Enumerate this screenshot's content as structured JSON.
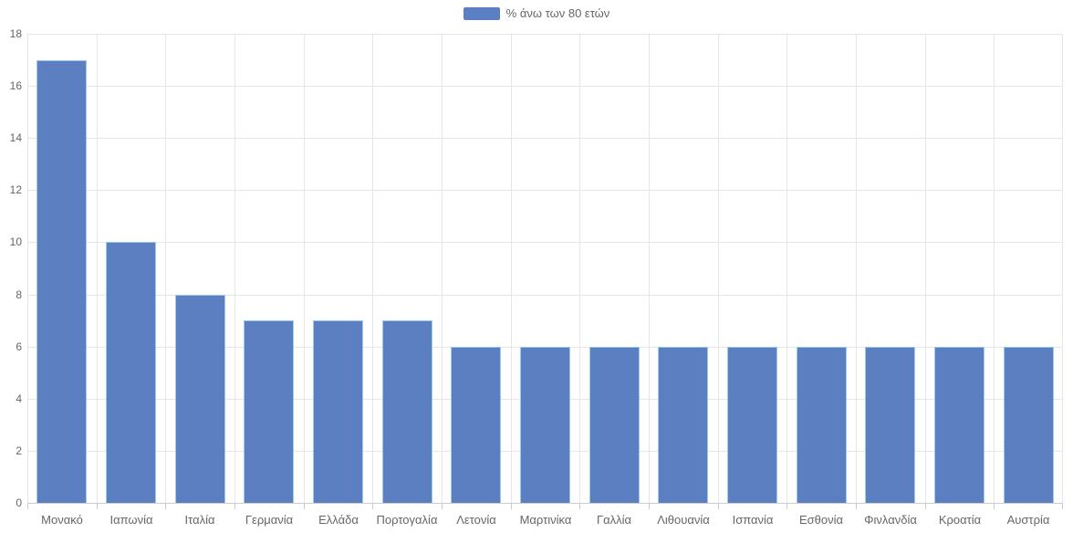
{
  "chart_data": {
    "type": "bar",
    "title": "",
    "categories": [
      "Μονακό",
      "Ιαπωνία",
      "Ιταλία",
      "Γερμανία",
      "Ελλάδα",
      "Πορτογαλία",
      "Λετονία",
      "Μαρτινίκα",
      "Γαλλία",
      "Λιθουανία",
      "Ισπανία",
      "Εσθονία",
      "Φινλανδία",
      "Κροατία",
      "Αυστρία"
    ],
    "series": [
      {
        "name": "% άνω των 80 ετών",
        "values": [
          17,
          10,
          8,
          7,
          7,
          7,
          6,
          6,
          6,
          6,
          6,
          6,
          6,
          6,
          6
        ]
      }
    ],
    "xlabel": "",
    "ylabel": "",
    "ylim": [
      0,
      18
    ],
    "yticks": [
      0,
      2,
      4,
      6,
      8,
      10,
      12,
      14,
      16,
      18
    ],
    "grid": "both",
    "legend_position": "top-center",
    "colors": {
      "bar_fill": "#5b7fc0",
      "bar_border": "#9ccbe7",
      "grid_line": "#e6e6e6",
      "axis_line": "#cccccc",
      "label_text": "#666666"
    }
  }
}
